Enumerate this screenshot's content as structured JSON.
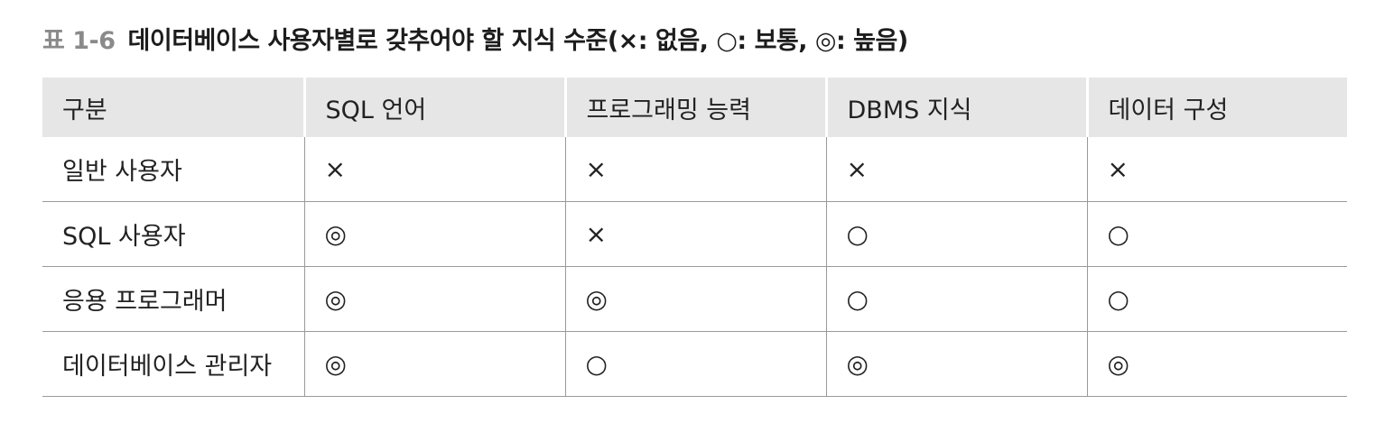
{
  "caption": {
    "number": "표 1-6",
    "text": "데이터베이스 사용자별로 갖추어야 할 지식 수준(×: 없음, ○: 보통, ◎: 높음)"
  },
  "table": {
    "headers": [
      "구분",
      "SQL 언어",
      "프로그래밍 능력",
      "DBMS 지식",
      "데이터 구성"
    ],
    "rows": [
      [
        "일반 사용자",
        "×",
        "×",
        "×",
        "×"
      ],
      [
        "SQL 사용자",
        "◎",
        "×",
        "○",
        "○"
      ],
      [
        "응용 프로그래머",
        "◎",
        "◎",
        "○",
        "○"
      ],
      [
        "데이터베이스 관리자",
        "◎",
        "○",
        "◎",
        "◎"
      ]
    ]
  }
}
